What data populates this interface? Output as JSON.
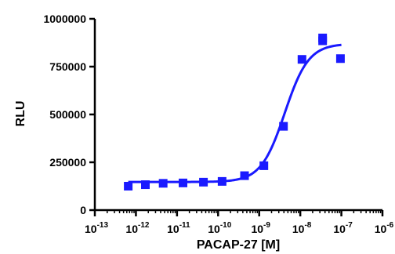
{
  "chart_data": {
    "type": "scatter",
    "title": "",
    "xlabel": "PACAP-27 [M]",
    "ylabel": "RLU",
    "xscale": "log",
    "xlim": [
      1e-13,
      1e-06
    ],
    "ylim": [
      0,
      1000000
    ],
    "x_ticks": [
      {
        "value": 1e-13,
        "base": "10",
        "exp": "-13"
      },
      {
        "value": 1e-12,
        "base": "10",
        "exp": "-12"
      },
      {
        "value": 1e-11,
        "base": "10",
        "exp": "-11"
      },
      {
        "value": 1e-10,
        "base": "10",
        "exp": "-10"
      },
      {
        "value": 1e-09,
        "base": "10",
        "exp": "-9"
      },
      {
        "value": 1e-08,
        "base": "10",
        "exp": "-8"
      },
      {
        "value": 1e-07,
        "base": "10",
        "exp": "-7"
      },
      {
        "value": 1e-06,
        "base": "10",
        "exp": "-6"
      }
    ],
    "y_ticks": [
      {
        "value": 0,
        "label": "0"
      },
      {
        "value": 250000,
        "label": "250000"
      },
      {
        "value": 500000,
        "label": "500000"
      },
      {
        "value": 750000,
        "label": "750000"
      },
      {
        "value": 1000000,
        "label": "1000000"
      }
    ],
    "series": [
      {
        "marker": "square",
        "color": "#1a1aff",
        "points": [
          {
            "x": 6.5e-13,
            "y": 125000
          },
          {
            "x": 1.7e-12,
            "y": 133000
          },
          {
            "x": 4.6e-12,
            "y": 140000
          },
          {
            "x": 1.4e-11,
            "y": 142000
          },
          {
            "x": 4.4e-11,
            "y": 146000
          },
          {
            "x": 1.25e-10,
            "y": 150000
          },
          {
            "x": 4.4e-10,
            "y": 180000
          },
          {
            "x": 1.3e-09,
            "y": 232000
          },
          {
            "x": 3.9e-09,
            "y": 438000
          },
          {
            "x": 1.1e-08,
            "y": 788000
          },
          {
            "x": 3.5e-08,
            "y": 885000
          },
          {
            "x": 3.5e-08,
            "y": 900000
          },
          {
            "x": 9.5e-08,
            "y": 792000
          }
        ]
      }
    ],
    "fit_curve": {
      "model": "sigmoidal dose-response",
      "color": "#1a1aff",
      "bottom": 147000,
      "top": 870000,
      "ec50": 4.2e-09,
      "hill": 1.5,
      "x_range": [
        6.5e-13,
        1e-07
      ]
    },
    "grid": false,
    "legend": "none"
  }
}
